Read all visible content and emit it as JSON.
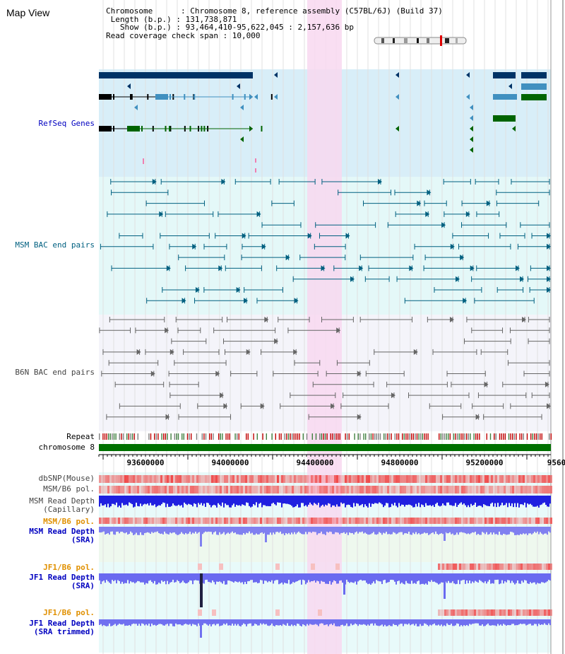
{
  "header": {
    "title": "Map View",
    "info_lines": [
      "Chromosome      : Chromosome 8, reference assembly (C57BL/6J) (Build 37)",
      " Length (b.p.) : 131,738,871",
      "   Show (b.p.) : 93,464,410-95,622,045 : 2,157,636 bp",
      "Read coverage check span : 10,000"
    ]
  },
  "tracks": {
    "refseq": "RefSeq Genes",
    "msm_bac": "MSM BAC end pairs",
    "b6n_bac": "B6N BAC end pairs",
    "repeat": "Repeat",
    "chromosome": "chromosome 8",
    "dbsnp": "dbSNP(Mouse)",
    "msm_b6_pol": "MSM/B6 pol.",
    "msm_read_depth_cap": [
      "MSM Read Depth",
      "(Capillary)"
    ],
    "msm_b6_pol_2": "MSM/B6 pol.",
    "msm_read_depth_sra": [
      "MSM Read Depth",
      "(SRA)"
    ],
    "jf1_b6_pol": "JF1/B6 pol.",
    "jf1_read_depth_sra": [
      "JF1 Read Depth",
      "(SRA)"
    ],
    "jf1_b6_pol_2": "JF1/B6 pol.",
    "jf1_read_depth_trim": [
      "JF1 Read Depth",
      "(SRA trimmed)"
    ]
  },
  "axis": {
    "ticks": [
      "93600000",
      "94000000",
      "94400000",
      "94800000",
      "95200000",
      "9560"
    ]
  },
  "colors": {
    "refseq_bg": "#d8eef8",
    "bac_bg": "#e4f8f8",
    "highlight": "#f8d8f0",
    "refseq_dark": "#003366",
    "refseq_mid": "#4090c0",
    "refseq_green": "#006400",
    "msm_bac": "#006080",
    "b6n_bac": "#666666",
    "chromosome": "#007000"
  }
}
